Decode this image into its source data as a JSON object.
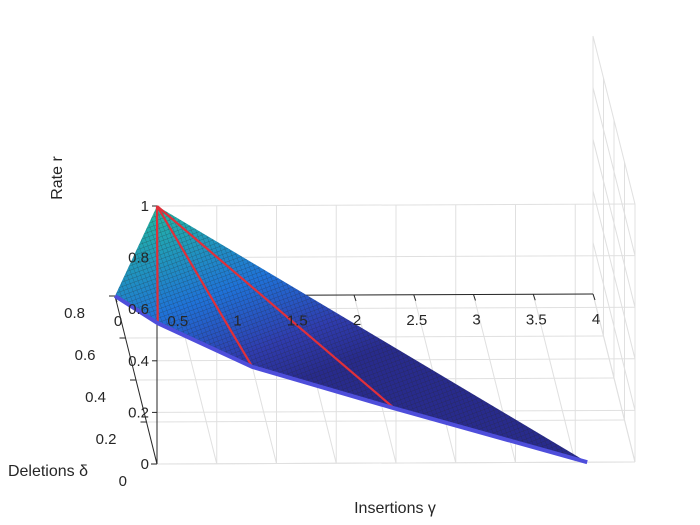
{
  "chart_data": {
    "type": "surface",
    "title": "",
    "xlabel": "Insertions γ",
    "ylabel": "Deletions δ",
    "zlabel": "Rate r",
    "xlim": [
      0,
      4
    ],
    "ylim": [
      0,
      0.8
    ],
    "zlim": [
      0,
      1
    ],
    "xticks": [
      "0",
      "0.5",
      "1",
      "1.5",
      "2",
      "2.5",
      "3",
      "3.5",
      "4"
    ],
    "yticks": [
      "0",
      "0.2",
      "0.4",
      "0.6",
      "0.8"
    ],
    "zticks": [
      "0",
      "0.2",
      "0.4",
      "0.6",
      "0.8",
      "1"
    ],
    "grid": true,
    "colormap": "parula",
    "surface_corner_points": [
      {
        "gamma": 0,
        "delta": 0,
        "rate": 1
      },
      {
        "gamma": 3.6,
        "delta": 0,
        "rate": 0
      },
      {
        "gamma": 0,
        "delta": 0.8,
        "rate": 0
      }
    ],
    "red_contour_lines": [
      {
        "from": {
          "gamma": 0,
          "delta": 0,
          "rate": 1
        },
        "to": {
          "gamma": 2.1,
          "delta": 0.26,
          "rate": 0
        }
      },
      {
        "from": {
          "gamma": 0,
          "delta": 0,
          "rate": 1
        },
        "to": {
          "gamma": 1.0,
          "delta": 0.46,
          "rate": 0
        }
      },
      {
        "from": {
          "gamma": 0,
          "delta": 0,
          "rate": 1
        },
        "to": {
          "gamma": 0.3,
          "delta": 0.67,
          "rate": 0
        }
      }
    ],
    "blue_boundary_curve": [
      {
        "gamma": 0,
        "delta": 0.8
      },
      {
        "gamma": 0.3,
        "delta": 0.67
      },
      {
        "gamma": 1.0,
        "delta": 0.46
      },
      {
        "gamma": 2.1,
        "delta": 0.26
      },
      {
        "gamma": 3.6,
        "delta": 0
      }
    ],
    "colors": {
      "blue_curve": "#4e4edb",
      "red_lines": "#e0303a",
      "mesh": "#222222"
    }
  }
}
